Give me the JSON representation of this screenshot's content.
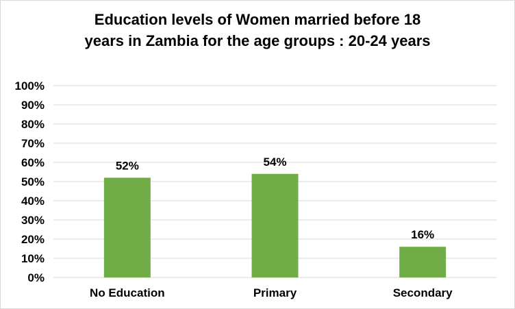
{
  "chart_data": {
    "type": "bar",
    "title": "Education levels of Women married before 18\nyears in Zambia  for the age groups : 20-24 years",
    "categories": [
      "No Education",
      "Primary",
      "Secondary"
    ],
    "series": [
      {
        "values": [
          52,
          54,
          16
        ],
        "data_labels": [
          "52%",
          "54%",
          "16%"
        ]
      }
    ],
    "ylim": [
      0,
      100
    ],
    "y_ticks": [
      0,
      10,
      20,
      30,
      40,
      50,
      60,
      70,
      80,
      90,
      100
    ],
    "y_tick_labels": [
      "0%",
      "10%",
      "20%",
      "30%",
      "40%",
      "50%",
      "60%",
      "70%",
      "80%",
      "90%",
      "100%"
    ],
    "xlabel": "",
    "ylabel": "",
    "grid": true,
    "legend": "none",
    "bar_color": "#70ad47",
    "grid_color": "#d9d9d9"
  }
}
